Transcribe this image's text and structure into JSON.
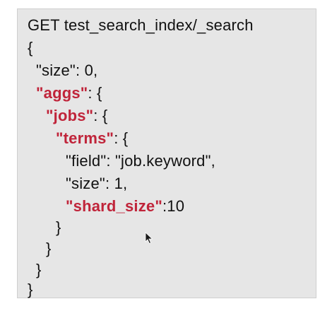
{
  "editor": {
    "request_line": "GET test_search_index/_search",
    "lines": {
      "open_root": "{",
      "size_prefix": "\"size\": 0,",
      "aggs_key": "\"aggs\"",
      "aggs_suffix": ": {",
      "jobs_key": "\"jobs\"",
      "jobs_suffix": ": {",
      "terms_key": "\"terms\"",
      "terms_suffix": ": {",
      "field_line": "\"field\": \"job.keyword\",",
      "size_line": "\"size\": 1,",
      "shard_size_key": "\"shard_size\"",
      "shard_size_suffix": ":10",
      "close_terms": "}",
      "close_jobs": "}",
      "close_aggs": "}",
      "close_root": "}"
    },
    "colors": {
      "panel_bg": "#e6e6e6",
      "keyword": "#c0243a",
      "text": "#111111"
    },
    "cursor_icon": "mouse-pointer-icon"
  }
}
